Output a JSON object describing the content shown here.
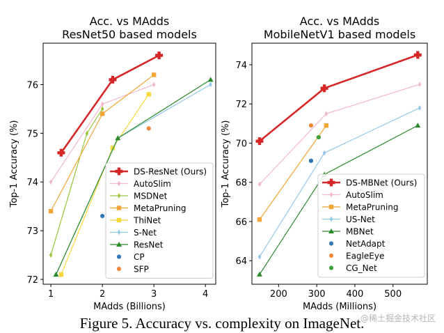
{
  "chart_data": [
    {
      "type": "line",
      "title": [
        "Acc. vs MAdds",
        "ResNet50 based models"
      ],
      "xlabel": "MAdds (Billions)",
      "ylabel": "Top-1 Accuracy (%)",
      "xlim": [
        0.85,
        4.2
      ],
      "ylim": [
        71.9,
        76.85
      ],
      "xticks": [
        1,
        2,
        3,
        4
      ],
      "yticks": [
        72,
        73,
        74,
        75,
        76
      ],
      "grid": false,
      "legend": "bottom-right",
      "series": [
        {
          "name": "DS-ResNet (Ours)",
          "color": "#d62728",
          "marker": "plus",
          "line": true,
          "width": 2.6,
          "points": [
            [
              1.2,
              74.6
            ],
            [
              2.2,
              76.1
            ],
            [
              3.1,
              76.6
            ]
          ]
        },
        {
          "name": "AutoSlim",
          "color": "#f2b8ca",
          "marker": "diamond",
          "line": true,
          "width": 1.2,
          "points": [
            [
              1.0,
              74.0
            ],
            [
              2.0,
              75.6
            ],
            [
              3.0,
              76.0
            ]
          ]
        },
        {
          "name": "MSDNet",
          "color": "#9bc53d",
          "marker": "diamond",
          "line": true,
          "width": 1.2,
          "points": [
            [
              1.0,
              72.5
            ],
            [
              1.7,
              75.0
            ],
            [
              2.0,
              75.5
            ]
          ]
        },
        {
          "name": "MetaPruning",
          "color": "#f0a534",
          "marker": "square",
          "line": true,
          "width": 1.2,
          "points": [
            [
              1.0,
              73.4
            ],
            [
              2.0,
              75.4
            ],
            [
              3.0,
              76.2
            ]
          ]
        },
        {
          "name": "ThiNet",
          "color": "#f7d83a",
          "marker": "square",
          "line": true,
          "width": 1.2,
          "points": [
            [
              1.2,
              72.1
            ],
            [
              2.2,
              74.7
            ],
            [
              2.9,
              75.8
            ]
          ]
        },
        {
          "name": "S-Net",
          "color": "#92c8e6",
          "marker": "diamond",
          "line": true,
          "width": 1.2,
          "points": [
            [
              1.1,
              72.1
            ],
            [
              2.3,
              74.9
            ],
            [
              4.1,
              76.0
            ]
          ]
        },
        {
          "name": "ResNet",
          "color": "#2a8a2a",
          "marker": "triangle",
          "line": true,
          "width": 1.2,
          "points": [
            [
              1.1,
              72.1
            ],
            [
              2.3,
              74.9
            ],
            [
              4.1,
              76.1
            ]
          ]
        },
        {
          "name": "CP",
          "color": "#2f78b5",
          "marker": "hex",
          "line": false,
          "points": [
            [
              2.0,
              73.3
            ]
          ]
        },
        {
          "name": "SFP",
          "color": "#f0883a",
          "marker": "hex",
          "line": false,
          "points": [
            [
              2.9,
              75.1
            ]
          ]
        }
      ]
    },
    {
      "type": "line",
      "title": [
        "Acc. vs MAdds",
        "MobileNetV1 based models"
      ],
      "xlabel": "MAdds (Millions)",
      "ylabel": "Top-1 Accuracy (%)",
      "xlim": [
        130,
        590
      ],
      "ylim": [
        62.8,
        75.1
      ],
      "xticks": [
        200,
        300,
        400,
        500
      ],
      "yticks": [
        64,
        66,
        68,
        70,
        72,
        74
      ],
      "grid": false,
      "legend": "bottom-right",
      "series": [
        {
          "name": "DS-MBNet (Ours)",
          "color": "#d62728",
          "marker": "plus",
          "line": true,
          "width": 2.6,
          "points": [
            [
              150,
              70.1
            ],
            [
              320,
              72.8
            ],
            [
              565,
              74.5
            ]
          ]
        },
        {
          "name": "AutoSlim",
          "color": "#f2b8ca",
          "marker": "diamond",
          "line": true,
          "width": 1.2,
          "points": [
            [
              150,
              67.9
            ],
            [
              325,
              71.5
            ],
            [
              570,
              73.0
            ]
          ]
        },
        {
          "name": "MetaPruning",
          "color": "#f0a534",
          "marker": "square",
          "line": true,
          "width": 1.2,
          "points": [
            [
              150,
              66.1
            ],
            [
              325,
              70.9
            ]
          ]
        },
        {
          "name": "US-Net",
          "color": "#92c8e6",
          "marker": "diamond",
          "line": true,
          "width": 1.2,
          "points": [
            [
              150,
              64.2
            ],
            [
              320,
              69.5
            ],
            [
              570,
              71.8
            ]
          ]
        },
        {
          "name": "MBNet",
          "color": "#2a8a2a",
          "marker": "triangle",
          "line": true,
          "width": 1.2,
          "points": [
            [
              150,
              63.3
            ],
            [
              320,
              68.4
            ],
            [
              565,
              70.9
            ]
          ]
        },
        {
          "name": "NetAdapt",
          "color": "#2f78b5",
          "marker": "hex",
          "line": false,
          "points": [
            [
              285,
              69.1
            ]
          ]
        },
        {
          "name": "EagleEye",
          "color": "#f0883a",
          "marker": "hex",
          "line": false,
          "points": [
            [
              285,
              70.9
            ]
          ]
        },
        {
          "name": "CG_Net",
          "color": "#3ca03c",
          "marker": "hex",
          "line": false,
          "points": [
            [
              305,
              70.3
            ]
          ]
        }
      ]
    }
  ],
  "caption": "Figure 5. Accuracy vs. complexity on ImageNet.",
  "watermark": "@稀土掘金技术社区"
}
